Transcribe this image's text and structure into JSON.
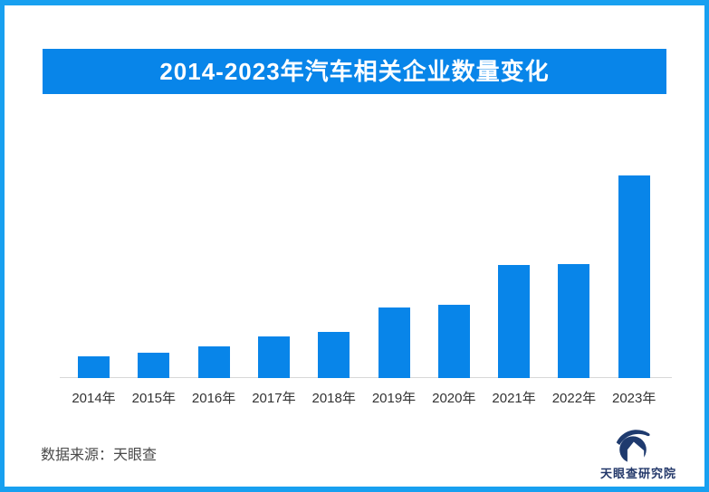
{
  "page": {
    "background_color": "#ffffff",
    "border_color": "#18a0f0"
  },
  "title_banner": {
    "text": "2014-2023年汽车相关企业数量变化",
    "background_color": "#0885e9",
    "text_color": "#ffffff"
  },
  "chart_data": {
    "type": "bar",
    "title": "2014-2023年汽车相关企业数量变化",
    "categories": [
      "2014年",
      "2015年",
      "2016年",
      "2017年",
      "2018年",
      "2019年",
      "2020年",
      "2021年",
      "2022年",
      "2023年"
    ],
    "values": [
      24,
      28,
      35,
      46,
      51,
      78,
      81,
      125,
      126,
      224
    ],
    "value_note": "no y-axis, gridlines or value labels are shown in the figure; values are relative bar heights (screen px), 2023 is the tallest",
    "xlabel": "",
    "ylabel": "",
    "ylim": [
      0,
      240
    ],
    "grid": false,
    "legend": "none",
    "bar_color": "#0885e9",
    "axis_line_color": "#d8d8d8",
    "tick_label_color": "#333333"
  },
  "footer": {
    "source_text": "数据来源：天眼查",
    "source_color": "#4a4a4a",
    "logo_icon": "tianyancha-eye-logo",
    "logo_text": "天眼查研究院",
    "logo_color": "#23386a"
  }
}
